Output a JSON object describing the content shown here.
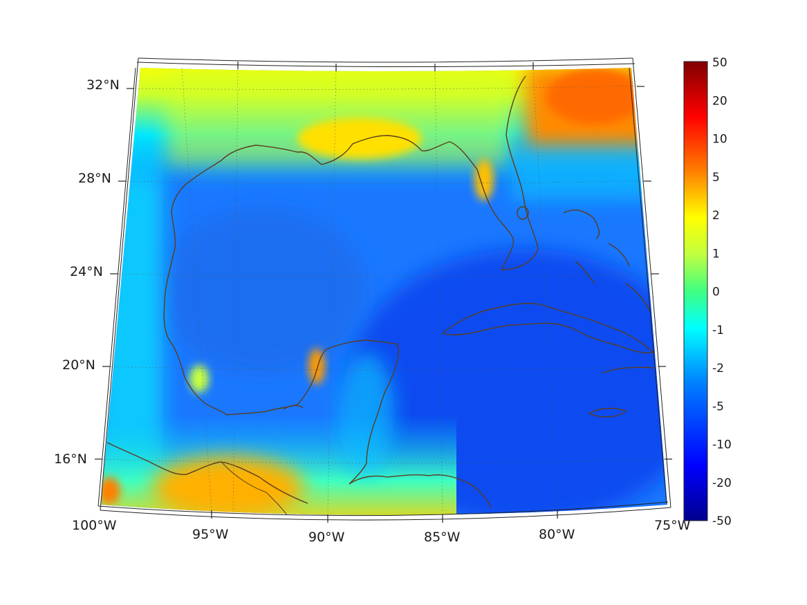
{
  "map": {
    "projection": "conic",
    "extent": {
      "lon_min": -100,
      "lon_max": -75,
      "lat_min": 14,
      "lat_max": 33
    },
    "lon_tick_labels": [
      {
        "lon": -100,
        "label": "100°W"
      },
      {
        "lon": -95,
        "label": "95°W"
      },
      {
        "lon": -90,
        "label": "90°W"
      },
      {
        "lon": -85,
        "label": "85°W"
      },
      {
        "lon": -80,
        "label": "80°W"
      },
      {
        "lon": -75,
        "label": "75°W"
      }
    ],
    "lat_tick_labels": [
      {
        "lat": 32,
        "label": "32°N"
      },
      {
        "lat": 28,
        "label": "28°N"
      },
      {
        "lat": 24,
        "label": "24°N"
      },
      {
        "lat": 20,
        "label": "20°N"
      },
      {
        "lat": 16,
        "label": "16°N"
      }
    ],
    "grid": true,
    "coastline_color": "#5a3d1e",
    "colormap": "jet",
    "field_regions": [
      {
        "name": "gulf-of-mexico",
        "value": -8
      },
      {
        "name": "caribbean-sea",
        "value": -12
      },
      {
        "name": "atlantic-northeast",
        "value": 5
      },
      {
        "name": "gulf-coast-north",
        "value": 1
      },
      {
        "name": "pacific-southwest",
        "value": 2
      },
      {
        "name": "yucatan-coast",
        "value": 2
      }
    ]
  },
  "colorbar": {
    "position": "right",
    "tick_labels": [
      "50",
      "20",
      "10",
      "5",
      "2",
      "1",
      "0",
      "-1",
      "-2",
      "-5",
      "-10",
      "-20",
      "-50"
    ]
  }
}
